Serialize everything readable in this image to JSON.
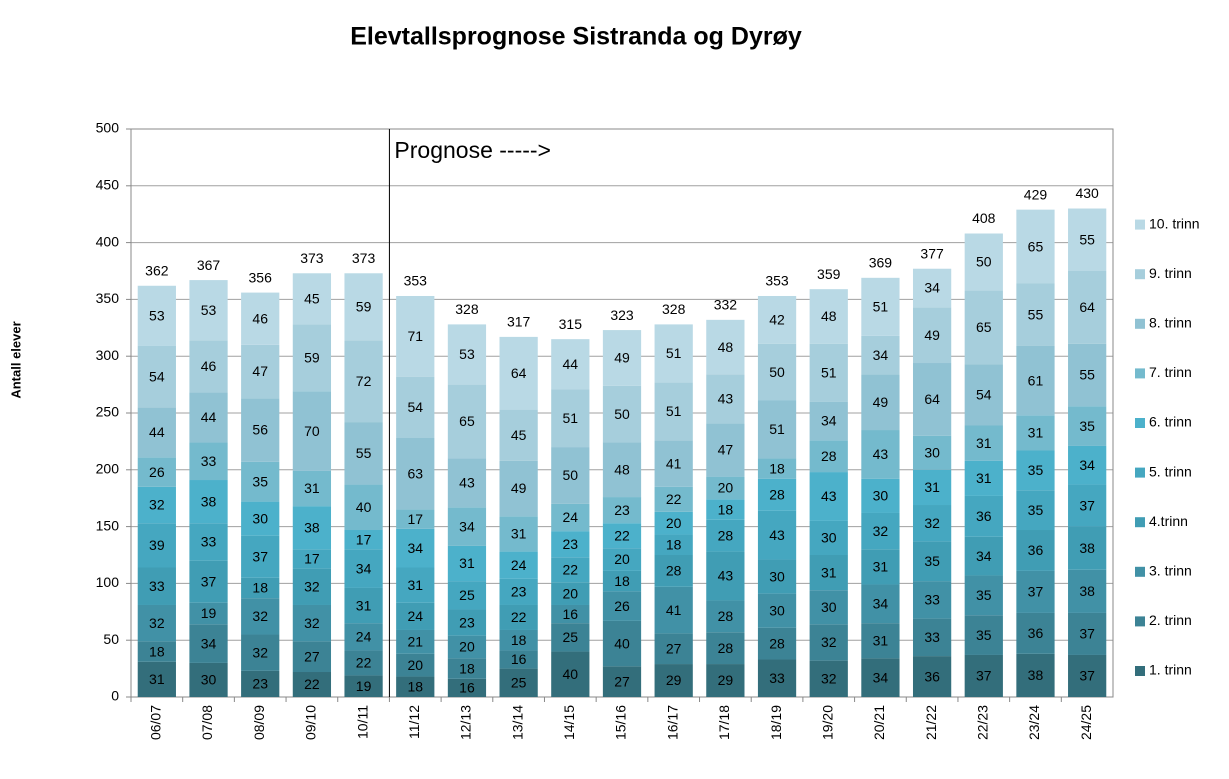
{
  "chart_data": {
    "type": "stacked_bar",
    "title": "Elevtallsprognose Sistranda og Dyrøy",
    "y_label": "Antall elever",
    "annotation": "Prognose ----->",
    "categories": [
      "06/07",
      "07/08",
      "08/09",
      "09/10",
      "10/11",
      "11/12",
      "12/13",
      "13/14",
      "14/15",
      "15/16",
      "16/17",
      "17/18",
      "18/19",
      "19/20",
      "20/21",
      "21/22",
      "22/23",
      "23/24",
      "24/25"
    ],
    "series": [
      {
        "name": "1. trinn",
        "color": "#336e7b",
        "values": [
          31,
          30,
          23,
          22,
          19,
          18,
          16,
          25,
          40,
          27,
          29,
          29,
          33,
          32,
          34,
          36,
          37,
          38,
          37
        ]
      },
      {
        "name": "2. trinn",
        "color": "#3c8395",
        "values": [
          18,
          34,
          32,
          27,
          22,
          20,
          18,
          16,
          25,
          40,
          27,
          28,
          28,
          32,
          31,
          33,
          35,
          36,
          37
        ]
      },
      {
        "name": "3. trinn",
        "color": "#4191a6",
        "values": [
          32,
          19,
          32,
          32,
          24,
          21,
          20,
          18,
          16,
          26,
          41,
          28,
          30,
          30,
          34,
          33,
          35,
          37,
          38
        ]
      },
      {
        "name": "4.trinn",
        "color": "#409db4",
        "values": [
          33,
          37,
          18,
          32,
          31,
          24,
          23,
          22,
          20,
          18,
          28,
          43,
          30,
          31,
          31,
          35,
          34,
          36,
          38
        ]
      },
      {
        "name": "5. trinn",
        "color": "#45a7c0",
        "values": [
          39,
          33,
          37,
          17,
          34,
          31,
          25,
          23,
          22,
          20,
          18,
          28,
          43,
          30,
          32,
          32,
          36,
          35,
          37
        ]
      },
      {
        "name": "6. trinn",
        "color": "#4cb1cb",
        "values": [
          32,
          38,
          30,
          38,
          17,
          34,
          31,
          24,
          23,
          22,
          20,
          18,
          28,
          43,
          30,
          31,
          31,
          35,
          34
        ]
      },
      {
        "name": "7. trinn",
        "color": "#74bacd",
        "values": [
          26,
          33,
          35,
          31,
          40,
          17,
          34,
          31,
          24,
          23,
          22,
          20,
          18,
          28,
          43,
          30,
          31,
          31,
          35
        ]
      },
      {
        "name": "8. trinn",
        "color": "#90c2d3",
        "values": [
          44,
          44,
          56,
          70,
          55,
          63,
          43,
          49,
          50,
          48,
          41,
          47,
          51,
          34,
          49,
          64,
          54,
          61,
          55
        ]
      },
      {
        "name": "9. trinn",
        "color": "#a6cedc",
        "values": [
          54,
          46,
          47,
          59,
          72,
          54,
          65,
          45,
          51,
          50,
          51,
          43,
          50,
          51,
          34,
          49,
          65,
          55,
          64
        ]
      },
      {
        "name": "10. trinn",
        "color": "#b9d9e5",
        "values": [
          53,
          53,
          46,
          45,
          59,
          71,
          53,
          64,
          44,
          49,
          51,
          48,
          42,
          48,
          51,
          34,
          50,
          65,
          55
        ]
      }
    ],
    "totals": [
      362,
      367,
      356,
      373,
      373,
      353,
      328,
      317,
      315,
      323,
      328,
      332,
      353,
      359,
      369,
      377,
      408,
      429,
      430
    ],
    "ylim": [
      0,
      500
    ],
    "yticks": [
      0,
      50,
      100,
      150,
      200,
      250,
      300,
      350,
      400,
      450,
      500
    ],
    "grid": true
  }
}
